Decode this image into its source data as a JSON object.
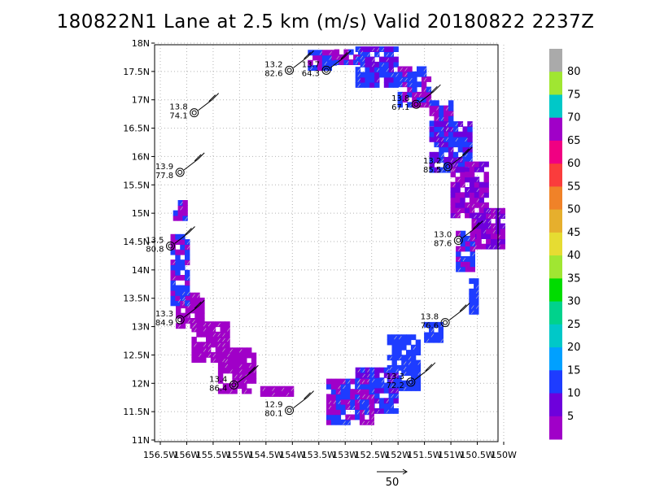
{
  "title": "180822N1 Lane at 2.5 km (m/s) Valid 20180822 2237Z",
  "chart_data": {
    "type": "heatmap",
    "title": "180822N1 Lane at 2.5 km (m/s) Valid 20180822 2237Z",
    "xlim": [
      -156.5,
      -150
    ],
    "ylim": [
      11,
      18
    ],
    "grid": true,
    "x_ticks": [
      "156.5W",
      "156W",
      "155.5W",
      "155W",
      "154.5W",
      "154W",
      "153.5W",
      "153W",
      "152.5W",
      "152W",
      "151.5W",
      "151W",
      "150.5W",
      "150W"
    ],
    "y_ticks": [
      "11N",
      "11.5N",
      "12N",
      "12.5N",
      "13N",
      "13.5N",
      "14N",
      "14.5N",
      "15N",
      "15.5N",
      "16N",
      "16.5N",
      "17N",
      "17.5N",
      "18N"
    ],
    "colorbar": {
      "labels": [
        "5",
        "10",
        "15",
        "20",
        "25",
        "30",
        "35",
        "40",
        "45",
        "50",
        "55",
        "60",
        "65",
        "70",
        "75",
        "80"
      ],
      "colors": [
        "#a000c8",
        "#6e00dc",
        "#1e3cff",
        "#00a0ff",
        "#00c8c8",
        "#00d28c",
        "#00dc00",
        "#a0e632",
        "#e6dc32",
        "#e6af2d",
        "#f08228",
        "#fa3c3c",
        "#f00082",
        "#a000c8",
        "#00c8c8",
        "#a0e632",
        "#aaaaaa"
      ]
    },
    "reference_vector": {
      "label": "50"
    },
    "stations": [
      {
        "lon": -153.95,
        "lat": 17.55,
        "v1": "13.2",
        "v2": "82.6"
      },
      {
        "lon": -153.25,
        "lat": 17.55,
        "v1": "13.7",
        "v2": "64.3"
      },
      {
        "lon": -155.75,
        "lat": 16.8,
        "v1": "13.8",
        "v2": "74.1"
      },
      {
        "lon": -151.55,
        "lat": 16.95,
        "v1": "13.8",
        "v2": "67.1"
      },
      {
        "lon": -156.02,
        "lat": 15.75,
        "v1": "13.9",
        "v2": "77.8"
      },
      {
        "lon": -150.95,
        "lat": 15.85,
        "v1": "13.2",
        "v2": "85.5"
      },
      {
        "lon": -156.2,
        "lat": 14.45,
        "v1": "13.5",
        "v2": "80.8"
      },
      {
        "lon": -150.75,
        "lat": 14.55,
        "v1": "13.0",
        "v2": "87.6"
      },
      {
        "lon": -156.02,
        "lat": 13.15,
        "v1": "13.3",
        "v2": "84.9"
      },
      {
        "lon": -151.0,
        "lat": 13.1,
        "v1": "13.8",
        "v2": "76.6"
      },
      {
        "lon": -155.0,
        "lat": 12.0,
        "v1": "13.4",
        "v2": "86.4"
      },
      {
        "lon": -151.65,
        "lat": 12.05,
        "v1": "13.3",
        "v2": "72.2"
      },
      {
        "lon": -153.95,
        "lat": 11.55,
        "v1": "12.9",
        "v2": "80.1"
      }
    ]
  }
}
